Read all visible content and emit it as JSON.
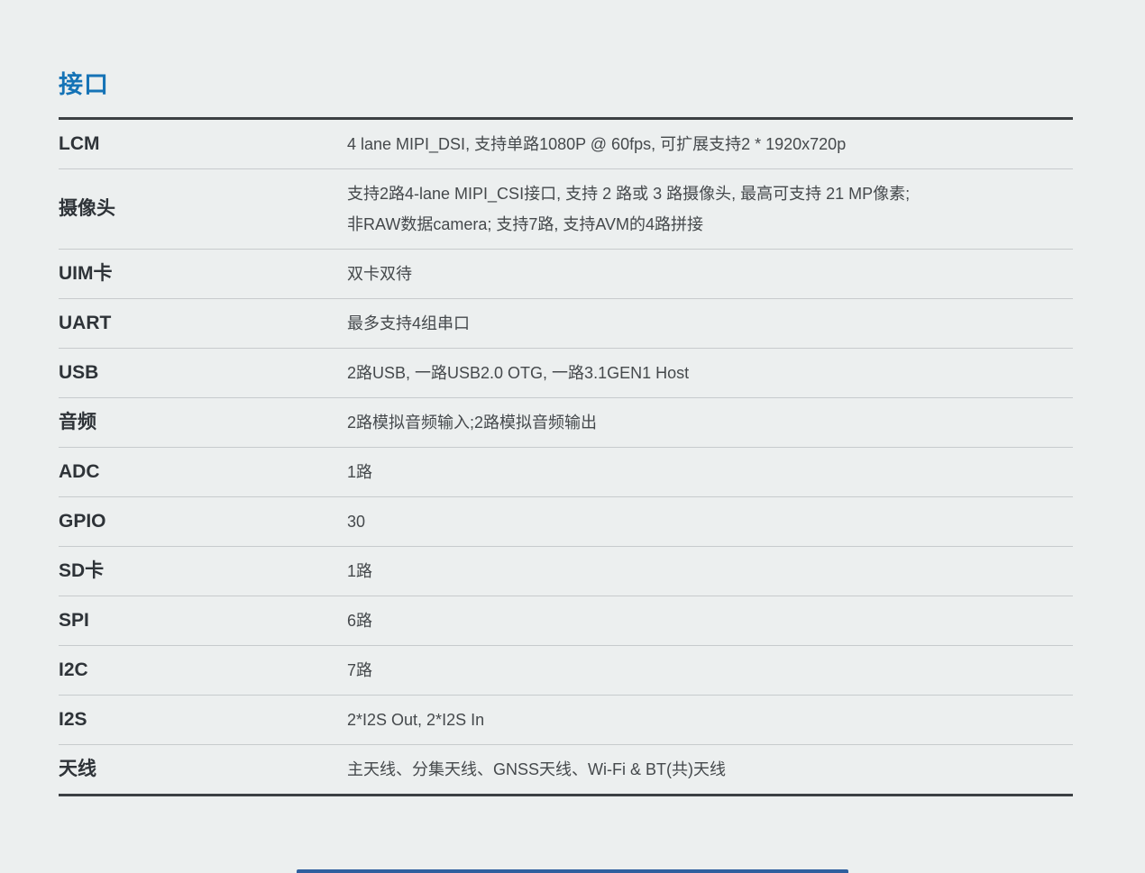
{
  "page": {
    "background_color": "#ecefef",
    "accent_blue": "#1573b6",
    "footer_bar_color": "#2f5f9e"
  },
  "section": {
    "title": "接口"
  },
  "table": {
    "rows": [
      {
        "label": "LCM",
        "value": "4 lane MIPI_DSI, 支持单路1080P @ 60fps, 可扩展支持2 * 1920x720p"
      },
      {
        "label": "摄像头",
        "value": "支持2路4-lane MIPI_CSI接口, 支持 2 路或 3 路摄像头, 最高可支持 21 MP像素;\n非RAW数据camera; 支持7路, 支持AVM的4路拼接"
      },
      {
        "label": "UIM卡",
        "value": "双卡双待"
      },
      {
        "label": "UART",
        "value": "最多支持4组串口"
      },
      {
        "label": "USB",
        "value": "2路USB, 一路USB2.0 OTG, 一路3.1GEN1 Host"
      },
      {
        "label": "音频",
        "value": "2路模拟音频输入;2路模拟音频输出"
      },
      {
        "label": "ADC",
        "value": "1路"
      },
      {
        "label": "GPIO",
        "value": "30"
      },
      {
        "label": "SD卡",
        "value": "1路"
      },
      {
        "label": "SPI",
        "value": "6路"
      },
      {
        "label": "I2C",
        "value": "7路"
      },
      {
        "label": "I2S",
        "value": "2*I2S Out, 2*I2S In"
      },
      {
        "label": "天线",
        "value": "主天线、分集天线、GNSS天线、Wi-Fi & BT(共)天线"
      }
    ]
  }
}
